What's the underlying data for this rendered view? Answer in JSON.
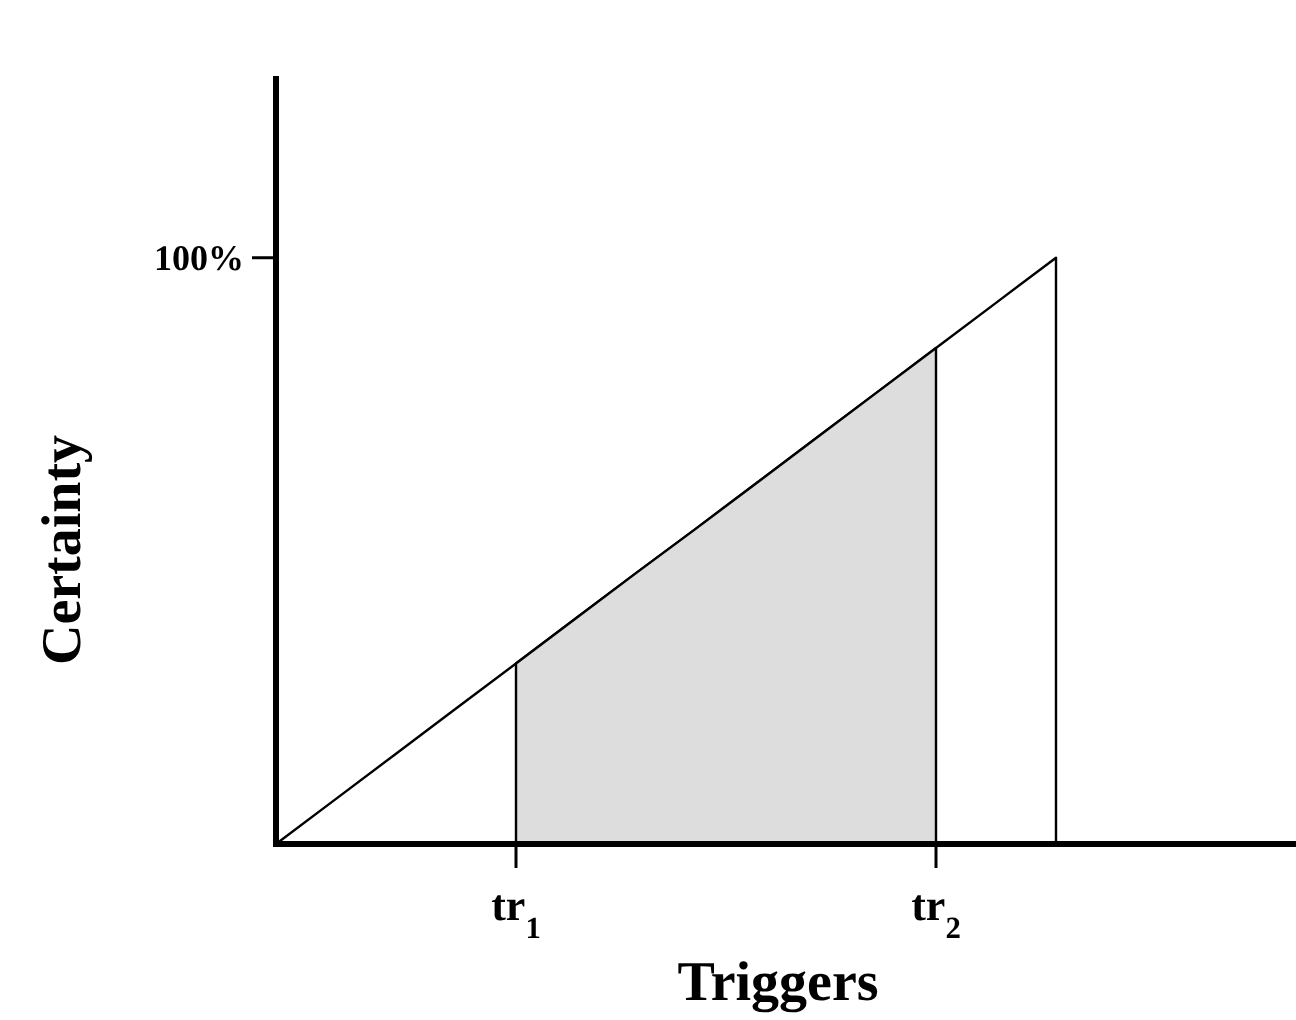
{
  "chart_data": {
    "type": "line",
    "xlabel": "Triggers",
    "ylabel": "Certainty",
    "categories": [
      null,
      null,
      null,
      null,
      "tr$_{1}$",
      null,
      null,
      null,
      null,
      null,
      null,
      "tr$_{2}$",
      null,
      null,
      null,
      null,
      null,
      null
    ],
    "ylim": [
      0,
      131
    ],
    "yticks": [
      {
        "value": 100,
        "label": "100%"
      }
    ],
    "grid": false,
    "marker": "none",
    "series": [
      {
        "type": "area",
        "color": "#ffffff",
        "values": [
          0,
          7.7,
          15.4,
          23.1,
          30.8,
          38.5,
          46.2,
          53.8,
          61.5,
          69.2,
          76.9,
          84.6,
          92.3,
          100,
          null,
          null,
          null,
          null
        ]
      },
      {
        "type": "area",
        "color": "#dddddd",
        "values": [
          null,
          null,
          null,
          null,
          30.8,
          38.5,
          46.2,
          53.8,
          61.5,
          69.2,
          76.9,
          84.6,
          null,
          null,
          null,
          null,
          null,
          null
        ]
      }
    ]
  }
}
